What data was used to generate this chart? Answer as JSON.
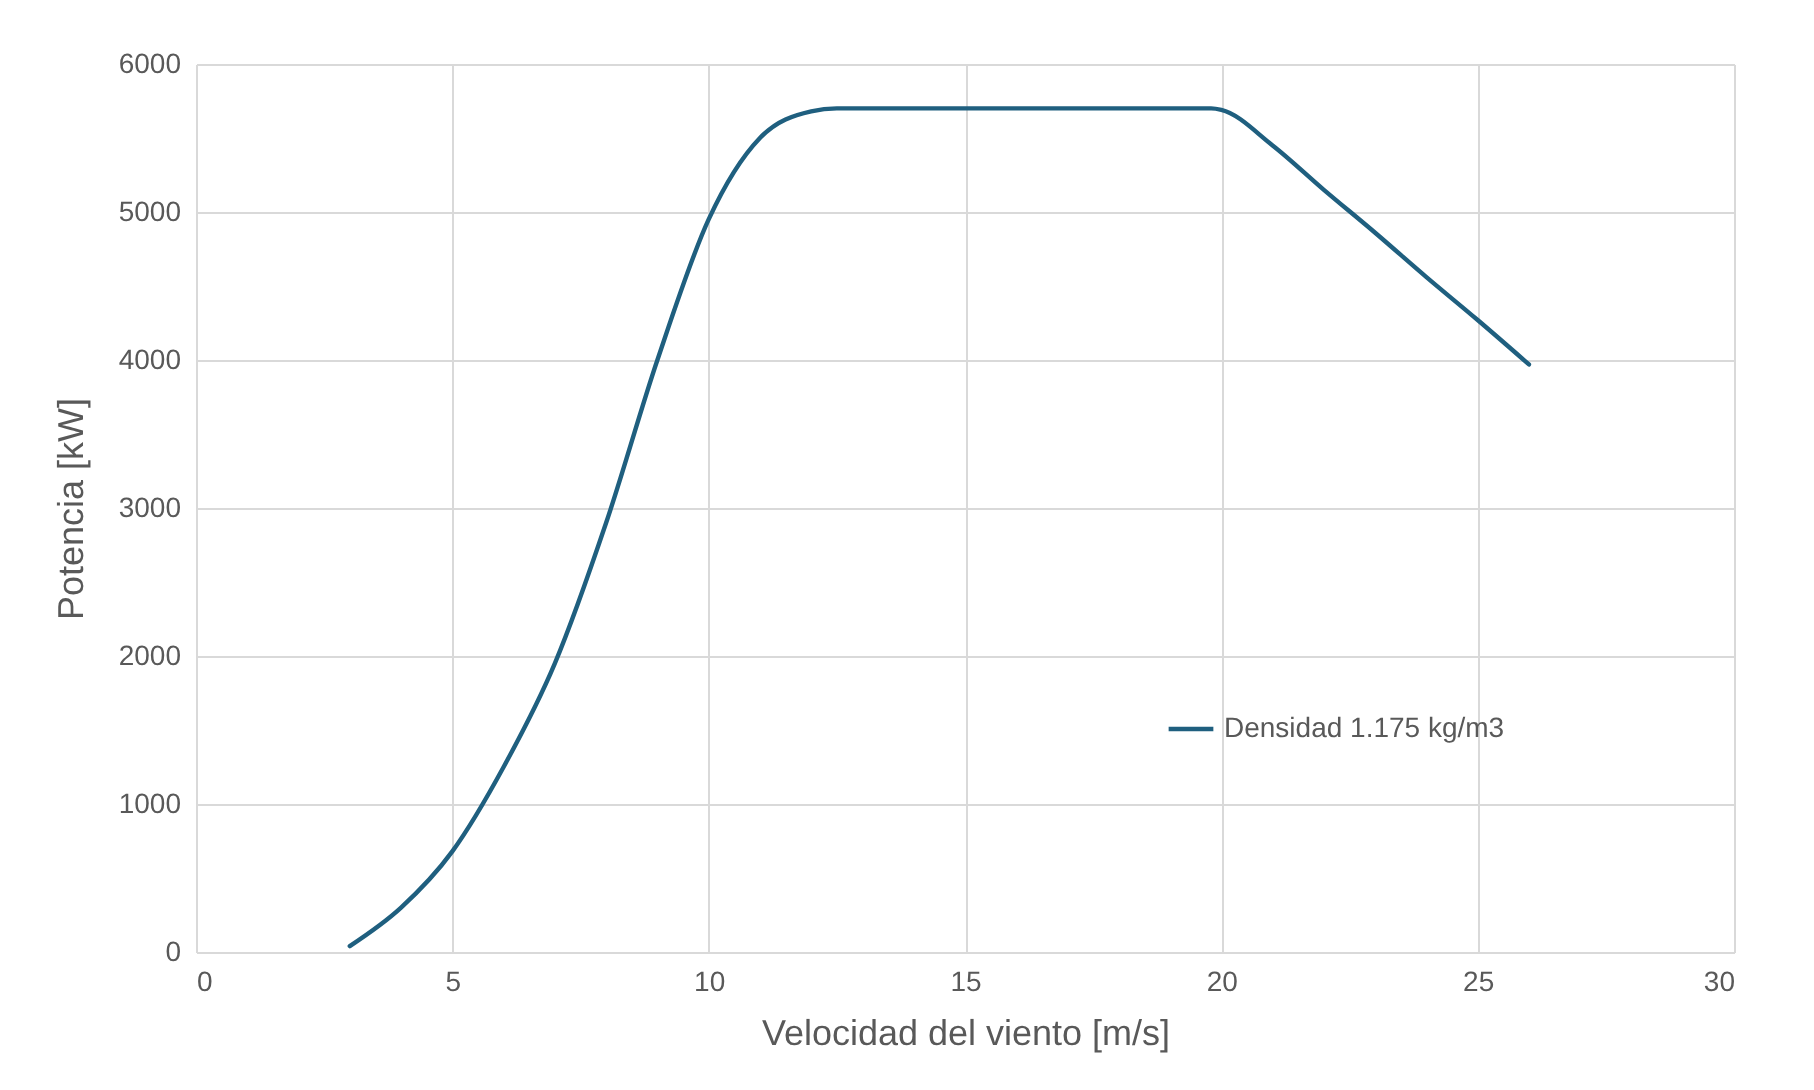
{
  "chart_data": {
    "type": "line",
    "xlabel": "Velocidad del viento [m/s]",
    "ylabel": "Potencia [kW]",
    "xlim": [
      0,
      30
    ],
    "xticks": [
      0,
      5,
      10,
      15,
      20,
      25,
      30
    ],
    "ylim": [
      0,
      6000
    ],
    "yticks": [
      0,
      1000,
      2000,
      3000,
      4000,
      5000,
      6000
    ],
    "grid": true,
    "legend": "right",
    "marker": "none",
    "line_style": "solid",
    "series": [
      {
        "name": "Densidad 1.175 kg/m3",
        "color": "#1f5f7f",
        "x": [
          3,
          4,
          5,
          6,
          7,
          8,
          9,
          10,
          11,
          12,
          12.5,
          13,
          15,
          19,
          19.8,
          20,
          21,
          22,
          23,
          24,
          25,
          26
        ],
        "values": [
          40,
          300,
          680,
          1250,
          1950,
          2900,
          4000,
          4950,
          5500,
          5680,
          5700,
          5700,
          5700,
          5700,
          5700,
          5690,
          5450,
          5150,
          4860,
          4560,
          4270,
          3970
        ]
      }
    ]
  }
}
